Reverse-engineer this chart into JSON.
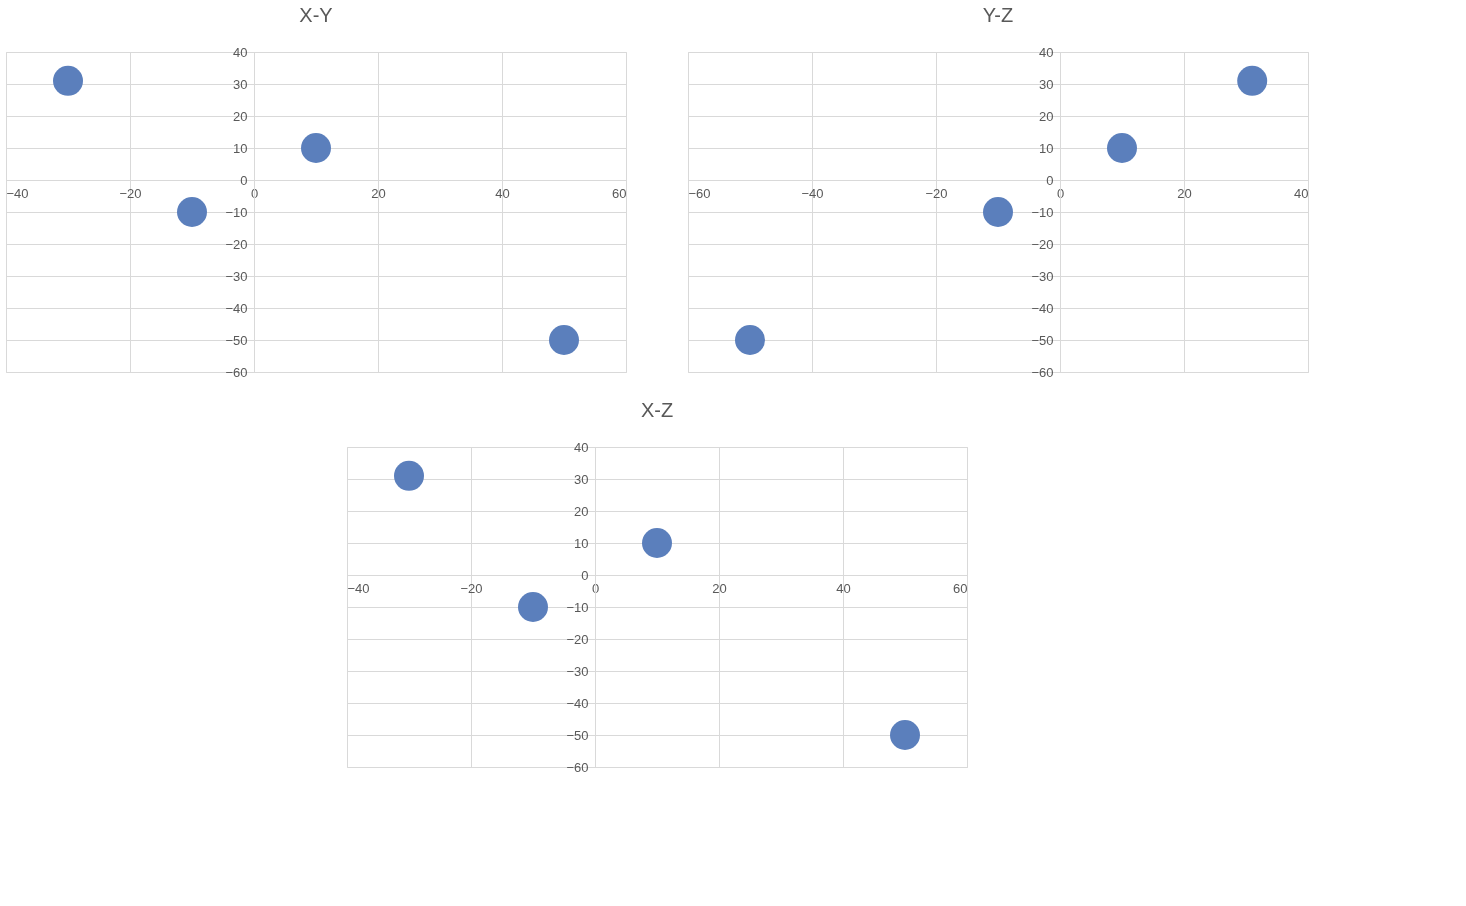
{
  "chart_data": [
    {
      "type": "scatter",
      "title": "X-Y",
      "xlim": [
        -40,
        60
      ],
      "ylim": [
        -60,
        40
      ],
      "xticks": [
        -40,
        -20,
        0,
        20,
        40,
        60
      ],
      "yticks": [
        -60,
        -50,
        -40,
        -30,
        -20,
        -10,
        0,
        10,
        20,
        30,
        40
      ],
      "grid": true,
      "marker": "circle",
      "series": [
        {
          "color": "#5b7fbc",
          "x": [
            -30,
            -10,
            10,
            50
          ],
          "values": [
            31,
            -10,
            10,
            -50
          ]
        }
      ]
    },
    {
      "type": "scatter",
      "title": "Y-Z",
      "xlim": [
        -60,
        40
      ],
      "ylim": [
        -60,
        40
      ],
      "xticks": [
        -60,
        -40,
        -20,
        0,
        20,
        40
      ],
      "yticks": [
        -60,
        -50,
        -40,
        -30,
        -20,
        -10,
        0,
        10,
        20,
        30,
        40
      ],
      "grid": true,
      "marker": "circle",
      "series": [
        {
          "color": "#5b7fbc",
          "x": [
            -50,
            -10,
            10,
            31
          ],
          "values": [
            -50,
            -10,
            10,
            31
          ]
        }
      ]
    },
    {
      "type": "scatter",
      "title": "X-Z",
      "xlim": [
        -40,
        60
      ],
      "ylim": [
        -60,
        40
      ],
      "xticks": [
        -40,
        -20,
        0,
        20,
        40,
        60
      ],
      "yticks": [
        -60,
        -50,
        -40,
        -30,
        -20,
        -10,
        0,
        10,
        20,
        30,
        40
      ],
      "grid": true,
      "marker": "circle",
      "series": [
        {
          "color": "#5b7fbc",
          "x": [
            -30,
            -10,
            10,
            50
          ],
          "values": [
            31,
            -10,
            10,
            -50
          ]
        }
      ]
    }
  ]
}
